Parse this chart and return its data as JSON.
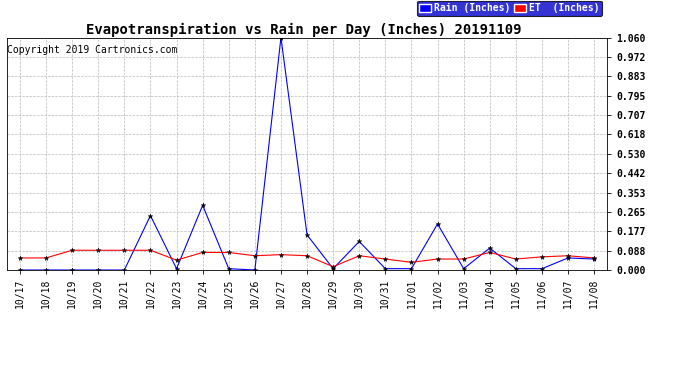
{
  "title": "Evapotranspiration vs Rain per Day (Inches) 20191109",
  "copyright": "Copyright 2019 Cartronics.com",
  "legend_rain": "Rain (Inches)",
  "legend_et": "ET  (Inches)",
  "x_labels": [
    "10/17",
    "10/18",
    "10/19",
    "10/20",
    "10/21",
    "10/22",
    "10/23",
    "10/24",
    "10/25",
    "10/26",
    "10/27",
    "10/28",
    "10/29",
    "10/30",
    "10/31",
    "11/01",
    "11/02",
    "11/03",
    "11/04",
    "11/05",
    "11/06",
    "11/07",
    "11/08"
  ],
  "rain_values": [
    0.0,
    0.0,
    0.0,
    0.0,
    0.0,
    0.248,
    0.006,
    0.295,
    0.006,
    0.0,
    1.06,
    0.16,
    0.006,
    0.13,
    0.006,
    0.006,
    0.21,
    0.006,
    0.1,
    0.006,
    0.006,
    0.055,
    0.05
  ],
  "et_values": [
    0.055,
    0.055,
    0.09,
    0.09,
    0.09,
    0.09,
    0.045,
    0.08,
    0.08,
    0.065,
    0.07,
    0.065,
    0.015,
    0.065,
    0.05,
    0.035,
    0.05,
    0.05,
    0.08,
    0.05,
    0.06,
    0.065,
    0.055
  ],
  "rain_color": "#0000ff",
  "et_color": "#ff0000",
  "background_color": "#ffffff",
  "grid_color": "#bbbbbb",
  "ylim": [
    0.0,
    1.06
  ],
  "yticks": [
    0.0,
    0.088,
    0.177,
    0.265,
    0.353,
    0.442,
    0.53,
    0.618,
    0.707,
    0.795,
    0.883,
    0.972,
    1.06
  ],
  "title_fontsize": 10,
  "copyright_fontsize": 7,
  "tick_fontsize": 7,
  "legend_fontsize": 7
}
